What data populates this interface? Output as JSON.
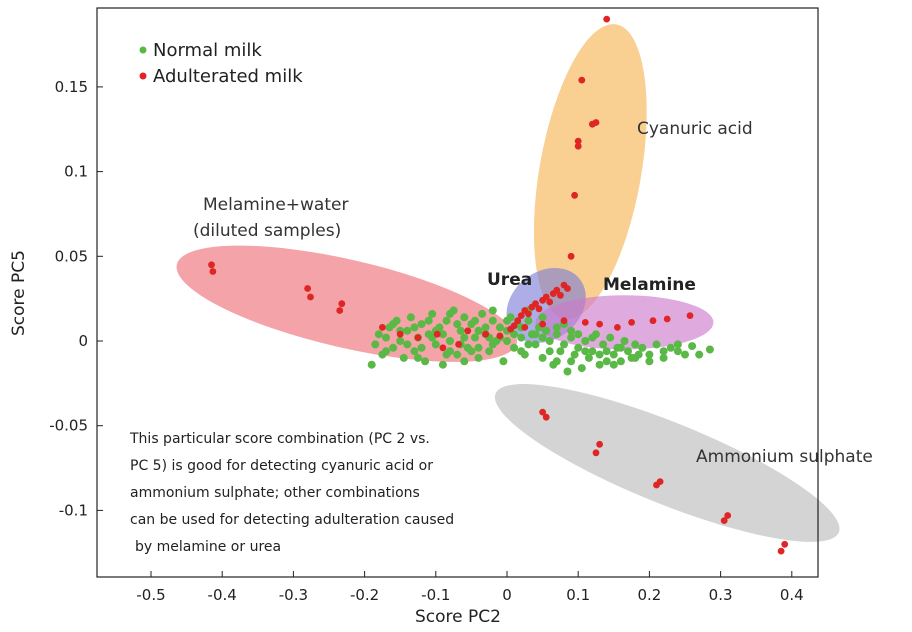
{
  "chart_data": {
    "type": "scatter",
    "title": "",
    "xlabel": "Score PC2",
    "ylabel": "Score PC5",
    "xlim": [
      -0.55,
      0.42
    ],
    "ylim": [
      -0.14,
      0.195
    ],
    "xticks": [
      -0.5,
      -0.4,
      -0.3,
      -0.2,
      -0.1,
      0,
      0.1,
      0.2,
      0.3,
      0.4
    ],
    "xtick_labels": [
      "-0.5",
      "-0.4",
      "-0.3",
      "-0.2",
      "-0.1",
      "0",
      "0.1",
      "0.2",
      "0.3",
      "0.4"
    ],
    "yticks": [
      -0.1,
      -0.05,
      0,
      0.05,
      0.1,
      0.15
    ],
    "ytick_labels": [
      "-0.1",
      "-0.05",
      "0",
      "0.05",
      "0.1",
      "0.15"
    ],
    "grid": false,
    "legend": {
      "position": "top-left",
      "entries": [
        {
          "label": "Normal milk",
          "color": "#5ab846"
        },
        {
          "label": "Adulterated milk",
          "color": "#e02525"
        }
      ]
    },
    "series": [
      {
        "name": "Normal milk",
        "color": "#5ab846",
        "points": [
          [
            -0.19,
            -0.014
          ],
          [
            -0.185,
            -0.002
          ],
          [
            -0.18,
            0.004
          ],
          [
            -0.175,
            -0.008
          ],
          [
            -0.17,
            0.002
          ],
          [
            -0.165,
            0.008
          ],
          [
            -0.16,
            -0.004
          ],
          [
            -0.155,
            0.012
          ],
          [
            -0.15,
            0.0
          ],
          [
            -0.145,
            -0.01
          ],
          [
            -0.14,
            0.006
          ],
          [
            -0.135,
            0.014
          ],
          [
            -0.13,
            -0.006
          ],
          [
            -0.125,
            0.002
          ],
          [
            -0.12,
            0.01
          ],
          [
            -0.115,
            -0.012
          ],
          [
            -0.11,
            0.004
          ],
          [
            -0.105,
            0.016
          ],
          [
            -0.1,
            -0.002
          ],
          [
            -0.095,
            0.008
          ],
          [
            -0.09,
            -0.014
          ],
          [
            -0.085,
            0.012
          ],
          [
            -0.08,
            0.0
          ],
          [
            -0.075,
            0.018
          ],
          [
            -0.07,
            -0.008
          ],
          [
            -0.065,
            0.006
          ],
          [
            -0.06,
            0.014
          ],
          [
            -0.055,
            -0.004
          ],
          [
            -0.05,
            0.01
          ],
          [
            -0.045,
            0.002
          ],
          [
            -0.04,
            -0.01
          ],
          [
            -0.035,
            0.016
          ],
          [
            -0.03,
            0.004
          ],
          [
            -0.025,
            -0.006
          ],
          [
            -0.02,
            0.012
          ],
          [
            -0.015,
            0.0
          ],
          [
            -0.01,
            0.008
          ],
          [
            -0.005,
            -0.012
          ],
          [
            0.0,
            0.006
          ],
          [
            0.005,
            0.014
          ],
          [
            0.01,
            -0.004
          ],
          [
            0.015,
            0.01
          ],
          [
            0.02,
            0.002
          ],
          [
            0.025,
            -0.008
          ],
          [
            0.03,
            0.012
          ],
          [
            0.035,
            0.004
          ],
          [
            0.04,
            -0.002
          ],
          [
            0.045,
            0.008
          ],
          [
            0.05,
            -0.01
          ],
          [
            0.055,
            0.006
          ],
          [
            0.06,
            0.0
          ],
          [
            0.065,
            -0.014
          ],
          [
            0.07,
            0.004
          ],
          [
            0.075,
            -0.006
          ],
          [
            0.08,
            0.01
          ],
          [
            0.085,
            -0.018
          ],
          [
            0.09,
            0.002
          ],
          [
            0.095,
            -0.008
          ],
          [
            0.1,
            -0.004
          ],
          [
            0.105,
            -0.016
          ],
          [
            0.11,
            0.0
          ],
          [
            0.115,
            -0.01
          ],
          [
            0.12,
            -0.006
          ],
          [
            0.125,
            0.004
          ],
          [
            0.13,
            -0.014
          ],
          [
            0.135,
            -0.002
          ],
          [
            0.14,
            -0.012
          ],
          [
            0.145,
            0.002
          ],
          [
            0.15,
            -0.008
          ],
          [
            0.155,
            -0.004
          ],
          [
            0.16,
            -0.012
          ],
          [
            0.165,
            0.0
          ],
          [
            0.17,
            -0.006
          ],
          [
            0.175,
            -0.01
          ],
          [
            0.18,
            -0.002
          ],
          [
            0.185,
            -0.008
          ],
          [
            0.19,
            -0.004
          ],
          [
            0.2,
            -0.008
          ],
          [
            0.21,
            -0.002
          ],
          [
            0.22,
            -0.006
          ],
          [
            0.23,
            -0.004
          ],
          [
            0.24,
            -0.002
          ],
          [
            0.25,
            -0.008
          ],
          [
            0.26,
            -0.003
          ],
          [
            0.285,
            -0.005
          ],
          [
            -0.12,
            -0.004
          ],
          [
            -0.1,
            0.006
          ],
          [
            -0.08,
            -0.006
          ],
          [
            -0.06,
            0.002
          ],
          [
            -0.04,
            0.006
          ],
          [
            -0.02,
            -0.002
          ],
          [
            0.0,
            0.0
          ],
          [
            0.02,
            0.008
          ],
          [
            0.04,
            0.004
          ],
          [
            -0.11,
            0.012
          ],
          [
            -0.09,
            0.004
          ],
          [
            -0.07,
            0.01
          ],
          [
            -0.05,
            -0.006
          ],
          [
            -0.03,
            0.008
          ],
          [
            -0.01,
            0.002
          ],
          [
            0.01,
            0.004
          ],
          [
            0.03,
            -0.002
          ],
          [
            -0.13,
            0.008
          ],
          [
            -0.15,
            0.006
          ],
          [
            -0.17,
            -0.006
          ],
          [
            0.07,
            0.008
          ],
          [
            0.09,
            -0.012
          ],
          [
            0.11,
            -0.006
          ],
          [
            0.13,
            -0.008
          ],
          [
            0.15,
            -0.014
          ],
          [
            -0.08,
            0.016
          ],
          [
            -0.06,
            -0.012
          ],
          [
            -0.04,
            -0.004
          ],
          [
            0.0,
            0.012
          ],
          [
            0.02,
            -0.006
          ],
          [
            0.05,
            0.002
          ],
          [
            0.06,
            -0.006
          ],
          [
            0.08,
            -0.002
          ],
          [
            -0.025,
            0.002
          ],
          [
            -0.045,
            0.012
          ],
          [
            -0.065,
            -0.002
          ],
          [
            -0.085,
            -0.008
          ],
          [
            -0.105,
            0.002
          ],
          [
            -0.125,
            -0.01
          ],
          [
            0.1,
            0.004
          ],
          [
            0.12,
            0.002
          ],
          [
            0.14,
            -0.006
          ],
          [
            0.16,
            -0.004
          ],
          [
            0.18,
            -0.01
          ],
          [
            0.2,
            -0.012
          ],
          [
            0.03,
            0.018
          ],
          [
            0.05,
            0.014
          ],
          [
            0.07,
            -0.012
          ],
          [
            0.09,
            0.006
          ],
          [
            -0.02,
            0.018
          ],
          [
            -0.14,
            -0.002
          ],
          [
            -0.16,
            0.01
          ],
          [
            0.22,
            -0.01
          ],
          [
            0.24,
            -0.006
          ],
          [
            0.27,
            -0.008
          ]
        ]
      },
      {
        "name": "Adulterated milk",
        "color": "#e02525",
        "points": [
          [
            -0.415,
            0.045
          ],
          [
            -0.413,
            0.041
          ],
          [
            -0.28,
            0.031
          ],
          [
            -0.276,
            0.026
          ],
          [
            -0.232,
            0.022
          ],
          [
            -0.235,
            0.018
          ],
          [
            -0.175,
            0.008
          ],
          [
            -0.15,
            0.004
          ],
          [
            -0.125,
            0.002
          ],
          [
            -0.098,
            0.004
          ],
          [
            -0.09,
            -0.004
          ],
          [
            -0.068,
            -0.002
          ],
          [
            -0.055,
            0.006
          ],
          [
            -0.03,
            0.004
          ],
          [
            -0.01,
            0.003
          ],
          [
            0.005,
            0.007
          ],
          [
            0.015,
            0.012
          ],
          [
            0.02,
            0.015
          ],
          [
            0.025,
            0.018
          ],
          [
            0.03,
            0.016
          ],
          [
            0.035,
            0.02
          ],
          [
            0.04,
            0.022
          ],
          [
            0.045,
            0.019
          ],
          [
            0.05,
            0.024
          ],
          [
            0.055,
            0.026
          ],
          [
            0.06,
            0.023
          ],
          [
            0.065,
            0.028
          ],
          [
            0.07,
            0.03
          ],
          [
            0.075,
            0.027
          ],
          [
            0.08,
            0.033
          ],
          [
            0.085,
            0.031
          ],
          [
            0.01,
            0.009
          ],
          [
            0.025,
            0.008
          ],
          [
            0.05,
            0.01
          ],
          [
            0.08,
            0.012
          ],
          [
            0.11,
            0.011
          ],
          [
            0.13,
            0.01
          ],
          [
            0.155,
            0.008
          ],
          [
            0.175,
            0.011
          ],
          [
            0.205,
            0.012
          ],
          [
            0.225,
            0.013
          ],
          [
            0.257,
            0.015
          ],
          [
            0.09,
            0.05
          ],
          [
            0.095,
            0.086
          ],
          [
            0.1,
            0.115
          ],
          [
            0.1,
            0.118
          ],
          [
            0.12,
            0.128
          ],
          [
            0.125,
            0.129
          ],
          [
            0.105,
            0.154
          ],
          [
            0.14,
            0.19
          ],
          [
            0.05,
            -0.042
          ],
          [
            0.055,
            -0.045
          ],
          [
            0.13,
            -0.061
          ],
          [
            0.125,
            -0.066
          ],
          [
            0.215,
            -0.083
          ],
          [
            0.21,
            -0.085
          ],
          [
            0.31,
            -0.103
          ],
          [
            0.305,
            -0.106
          ],
          [
            0.39,
            -0.12
          ],
          [
            0.385,
            -0.124
          ]
        ]
      }
    ],
    "annotations": [
      {
        "text": "Cyanuric acid"
      },
      {
        "text": "Melamine+water"
      },
      {
        "text": "(diluted samples)"
      },
      {
        "text": "Urea"
      },
      {
        "text": "Melamine"
      },
      {
        "text": "Ammonium sulphate"
      },
      {
        "text": "This particular score combination (PC 2 vs."
      },
      {
        "text": "PC 5) is good for detecting cyanuric acid or"
      },
      {
        "text": "ammonium sulphate; other combinations"
      },
      {
        "text": "can be used for detecting adulteration caused"
      },
      {
        "text": "by melamine or urea"
      }
    ],
    "regions": [
      {
        "name": "Cyanuric acid",
        "color": "#f5b14f",
        "cx": 0.117,
        "cy": 0.1,
        "angle_deg": 80,
        "rx": 0.21,
        "ry": 0.03
      },
      {
        "name": "Melamine+water (diluted samples)",
        "color": "#ee6b72",
        "cx": -0.225,
        "cy": 0.022,
        "angle_deg": -13,
        "rx": 0.245,
        "ry": 0.026
      },
      {
        "name": "Urea",
        "color": "#7d7dd6",
        "cx": 0.055,
        "cy": 0.021,
        "angle_deg": 38,
        "rx": 0.06,
        "ry": 0.02
      },
      {
        "name": "Melamine",
        "color": "#cc77cc",
        "cx": 0.165,
        "cy": 0.011,
        "angle_deg": 0,
        "rx": 0.125,
        "ry": 0.016
      },
      {
        "name": "Ammonium sulphate",
        "color": "#b9b9b9",
        "cx": 0.225,
        "cy": -0.072,
        "angle_deg": -22,
        "rx": 0.26,
        "ry": 0.024
      }
    ]
  }
}
